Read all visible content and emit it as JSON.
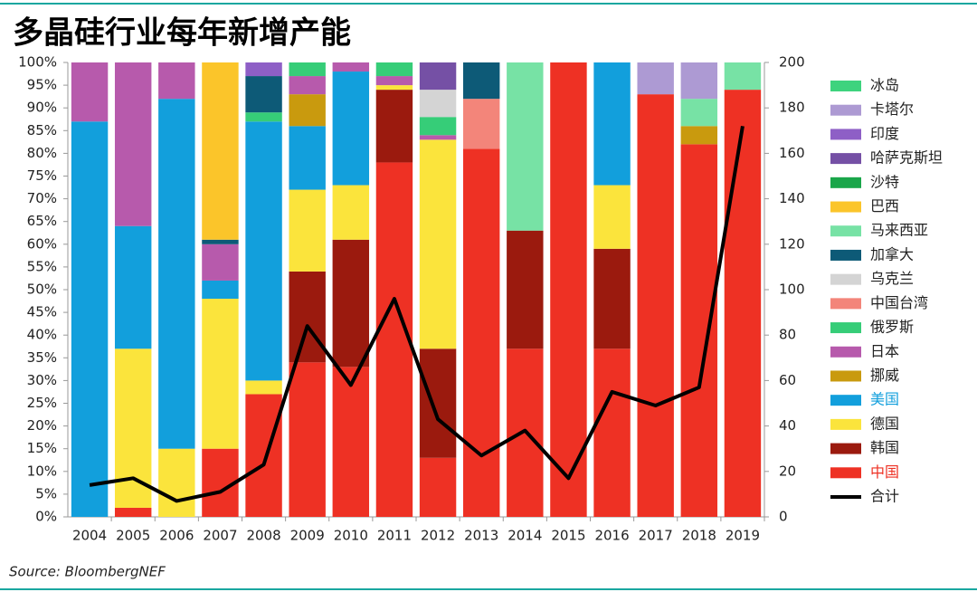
{
  "chart_data": {
    "type": "bar",
    "stacked": true,
    "title": "多晶硅行业每年新增产能",
    "source": "Source: BloombergNEF",
    "categories": [
      "2004",
      "2005",
      "2006",
      "2007",
      "2008",
      "2009",
      "2010",
      "2011",
      "2012",
      "2013",
      "2014",
      "2015",
      "2016",
      "2017",
      "2018",
      "2019"
    ],
    "ylim": [
      0,
      100
    ],
    "yticks": [
      {
        "value": 0,
        "label": "0%"
      },
      {
        "value": 5,
        "label": "5%"
      },
      {
        "value": 10,
        "label": "10%"
      },
      {
        "value": 15,
        "label": "15%"
      },
      {
        "value": 20,
        "label": "20%"
      },
      {
        "value": 25,
        "label": "25%"
      },
      {
        "value": 30,
        "label": "30%"
      },
      {
        "value": 35,
        "label": "35%"
      },
      {
        "value": 40,
        "label": "40%"
      },
      {
        "value": 45,
        "label": "45%"
      },
      {
        "value": 50,
        "label": "50%"
      },
      {
        "value": 55,
        "label": "55%"
      },
      {
        "value": 60,
        "label": "60%"
      },
      {
        "value": 65,
        "label": "65%"
      },
      {
        "value": 70,
        "label": "70%"
      },
      {
        "value": 75,
        "label": "75%"
      },
      {
        "value": 80,
        "label": "80%"
      },
      {
        "value": 85,
        "label": "85%"
      },
      {
        "value": 90,
        "label": "90%"
      },
      {
        "value": 95,
        "label": "95%"
      },
      {
        "value": 100,
        "label": "100%"
      }
    ],
    "y2lim": [
      0,
      200
    ],
    "y2ticks": [
      0,
      20,
      40,
      60,
      80,
      100,
      120,
      140,
      160,
      180,
      200
    ],
    "grid": false,
    "legend": "right",
    "series": [
      {
        "name": "中国",
        "color": "#ee3124",
        "label_color": "#ee3124",
        "values": [
          0,
          2,
          0,
          15,
          27,
          34,
          33,
          78,
          13,
          81,
          37,
          100,
          37,
          93,
          82,
          94
        ]
      },
      {
        "name": "韩国",
        "color": "#9b1a0e",
        "values": [
          0,
          0,
          0,
          0,
          0,
          20,
          28,
          16,
          24,
          0,
          26,
          0,
          22,
          0,
          0,
          0
        ]
      },
      {
        "name": "德国",
        "color": "#fbe43c",
        "values": [
          0,
          35,
          15,
          33,
          3,
          18,
          12,
          1,
          46,
          0,
          0,
          0,
          14,
          0,
          0,
          0
        ]
      },
      {
        "name": "美国",
        "color": "#129fdc",
        "label_color": "#129fdc",
        "values": [
          87,
          27,
          77,
          4,
          57,
          14,
          25,
          0,
          0,
          0,
          0,
          0,
          27,
          0,
          0,
          0
        ]
      },
      {
        "name": "挪威",
        "color": "#c99a0e",
        "values": [
          0,
          0,
          0,
          0,
          0,
          7,
          0,
          0,
          0,
          0,
          0,
          0,
          0,
          0,
          4,
          0
        ]
      },
      {
        "name": "日本",
        "color": "#b75aac",
        "values": [
          13,
          36,
          8,
          8,
          0,
          4,
          2,
          2,
          1,
          0,
          0,
          0,
          0,
          0,
          0,
          0
        ]
      },
      {
        "name": "俄罗斯",
        "color": "#36cd78",
        "values": [
          0,
          0,
          0,
          0,
          2,
          3,
          0,
          3,
          4,
          0,
          0,
          0,
          0,
          0,
          0,
          0
        ]
      },
      {
        "name": "中国台湾",
        "color": "#f3857a",
        "values": [
          0,
          0,
          0,
          0,
          0,
          0,
          0,
          0,
          0,
          11,
          0,
          0,
          0,
          0,
          0,
          0
        ]
      },
      {
        "name": "乌克兰",
        "color": "#d4d4d4",
        "values": [
          0,
          0,
          0,
          0,
          0,
          0,
          0,
          0,
          6,
          0,
          0,
          0,
          0,
          0,
          0,
          0
        ]
      },
      {
        "name": "加拿大",
        "color": "#0d5a77",
        "values": [
          0,
          0,
          0,
          1,
          8,
          0,
          0,
          0,
          0,
          8,
          0,
          0,
          0,
          0,
          0,
          0
        ]
      },
      {
        "name": "马来西亚",
        "color": "#77e2a5",
        "values": [
          0,
          0,
          0,
          0,
          0,
          0,
          0,
          0,
          0,
          0,
          37,
          0,
          0,
          0,
          6,
          6
        ]
      },
      {
        "name": "巴西",
        "color": "#fbc52a",
        "values": [
          0,
          0,
          0,
          39,
          0,
          0,
          0,
          0,
          0,
          0,
          0,
          0,
          0,
          0,
          0,
          0
        ]
      },
      {
        "name": "沙特",
        "color": "#1aa64a",
        "values": [
          0,
          0,
          0,
          0,
          0,
          0,
          0,
          0,
          0,
          0,
          0,
          0,
          0,
          0,
          0,
          0
        ]
      },
      {
        "name": "哈萨克斯坦",
        "color": "#7550a5",
        "values": [
          0,
          0,
          0,
          0,
          0,
          0,
          0,
          0,
          6,
          0,
          0,
          0,
          0,
          0,
          0,
          0
        ]
      },
      {
        "name": "印度",
        "color": "#8e5fc6",
        "values": [
          0,
          0,
          0,
          0,
          3,
          0,
          0,
          0,
          0,
          0,
          0,
          0,
          0,
          0,
          0,
          0
        ]
      },
      {
        "name": "卡塔尔",
        "color": "#ad9ad3",
        "values": [
          0,
          0,
          0,
          0,
          0,
          0,
          0,
          0,
          0,
          0,
          0,
          0,
          0,
          7,
          8,
          0
        ]
      },
      {
        "name": "冰岛",
        "color": "#3ed37e",
        "values": [
          0,
          0,
          0,
          0,
          0,
          0,
          0,
          0,
          0,
          0,
          0,
          0,
          0,
          0,
          0,
          0
        ]
      },
      {
        "name": "合计",
        "type": "line",
        "axis": "y2",
        "color": "#000000",
        "values": [
          14,
          17,
          7,
          11,
          23,
          84,
          58,
          96,
          43,
          27,
          38,
          17,
          55,
          49,
          57,
          172
        ]
      }
    ]
  }
}
